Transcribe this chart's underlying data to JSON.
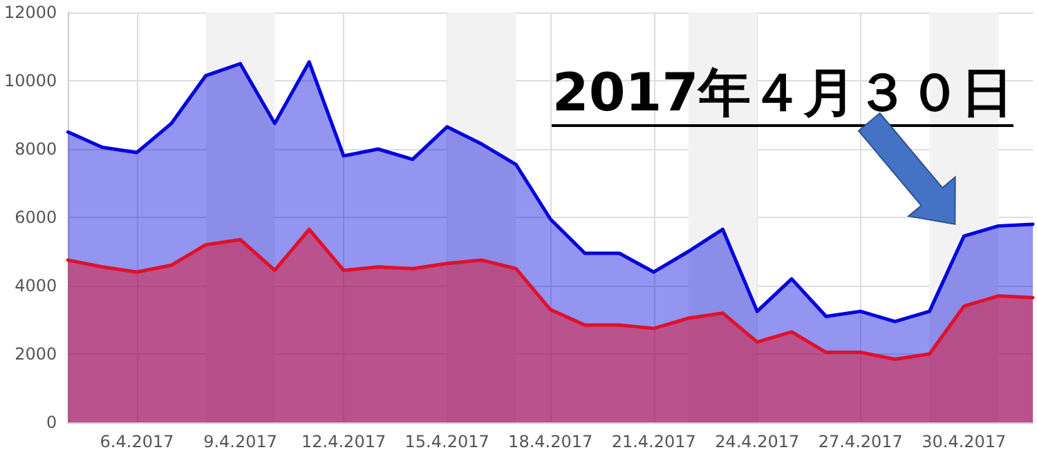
{
  "chart_data": {
    "type": "area",
    "x": [
      "2017-04-04",
      "2017-04-05",
      "2017-04-06",
      "2017-04-07",
      "2017-04-08",
      "2017-04-09",
      "2017-04-10",
      "2017-04-11",
      "2017-04-12",
      "2017-04-13",
      "2017-04-14",
      "2017-04-15",
      "2017-04-16",
      "2017-04-17",
      "2017-04-18",
      "2017-04-19",
      "2017-04-20",
      "2017-04-21",
      "2017-04-22",
      "2017-04-23",
      "2017-04-24",
      "2017-04-25",
      "2017-04-26",
      "2017-04-27",
      "2017-04-28",
      "2017-04-29",
      "2017-04-30",
      "2017-05-01",
      "2017-05-02"
    ],
    "series": [
      {
        "color": "#0000dd",
        "values": [
          8500,
          8050,
          7900,
          8750,
          10150,
          10500,
          8750,
          10550,
          7800,
          8000,
          7700,
          8650,
          8150,
          7550,
          5950,
          4950,
          4950,
          4400,
          5000,
          5650,
          3250,
          4200,
          3100,
          3250,
          2950,
          3250,
          5450,
          5750,
          5800
        ]
      },
      {
        "color": "#e0102a",
        "values": [
          4750,
          4550,
          4400,
          4600,
          5200,
          5350,
          4450,
          5650,
          4450,
          4550,
          4500,
          4650,
          4750,
          4500,
          3300,
          2850,
          2850,
          2750,
          3050,
          3200,
          2350,
          2650,
          2050,
          2050,
          1850,
          2000,
          3400,
          3700,
          3650
        ]
      }
    ],
    "xlim": [
      "2017-04-04",
      "2017-05-02"
    ],
    "xticks": [
      {
        "value": "2017-04-06",
        "label": "6.4.2017"
      },
      {
        "value": "2017-04-09",
        "label": "9.4.2017"
      },
      {
        "value": "2017-04-12",
        "label": "12.4.2017"
      },
      {
        "value": "2017-04-15",
        "label": "15.4.2017"
      },
      {
        "value": "2017-04-18",
        "label": "18.4.2017"
      },
      {
        "value": "2017-04-21",
        "label": "21.4.2017"
      },
      {
        "value": "2017-04-24",
        "label": "24.4.2017"
      },
      {
        "value": "2017-04-27",
        "label": "27.4.2017"
      },
      {
        "value": "2017-04-30",
        "label": "30.4.2017"
      }
    ],
    "ylim": [
      0,
      12000
    ],
    "yticks": [
      0,
      2000,
      4000,
      6000,
      8000,
      10000,
      12000
    ],
    "bands": [
      {
        "axis": "x",
        "from": "2017-04-08",
        "to": "2017-04-10",
        "color": "#f2f2f2"
      },
      {
        "axis": "x",
        "from": "2017-04-15",
        "to": "2017-04-17",
        "color": "#f2f2f2"
      },
      {
        "axis": "x",
        "from": "2017-04-22",
        "to": "2017-04-24",
        "color": "#f2f2f2"
      },
      {
        "axis": "x",
        "from": "2017-04-29",
        "to": "2017-05-01",
        "color": "#f2f2f2"
      }
    ],
    "annotations": [
      {
        "text": "2017年４月３０日",
        "x": "2017-04-30",
        "y": 5450
      }
    ],
    "grid": true,
    "marker": "none",
    "line_style": "solid"
  }
}
